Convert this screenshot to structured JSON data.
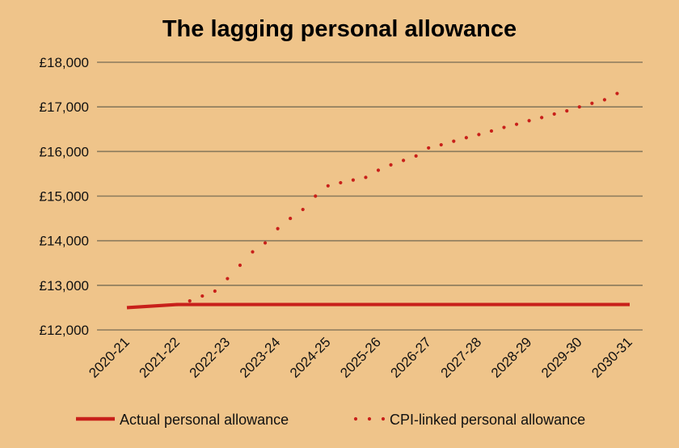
{
  "chart_data": {
    "type": "line",
    "title": "The lagging personal allowance",
    "xlabel": "",
    "ylabel": "",
    "categories": [
      "2020-21",
      "2021-22",
      "2022-23",
      "2023-24",
      "2024-25",
      "2025-26",
      "2026-27",
      "2027-28",
      "2028-29",
      "2029-30",
      "2030-31"
    ],
    "y_ticks": [
      "£12,000",
      "£13,000",
      "£14,000",
      "£15,000",
      "£16,000",
      "£17,000",
      "£18,000"
    ],
    "y_tick_values": [
      12000,
      13000,
      14000,
      15000,
      16000,
      17000,
      18000
    ],
    "ylim": [
      12000,
      18000
    ],
    "grid": true,
    "legend_position": "bottom",
    "series": [
      {
        "name": "Actual personal allowance",
        "style": "solid",
        "color": "#C8201A",
        "values": [
          12500,
          12570,
          12570,
          12570,
          12570,
          12570,
          12570,
          12570,
          12570,
          12570,
          12570
        ]
      },
      {
        "name": "CPI-linked personal allowance",
        "style": "dotted",
        "color": "#C8201A",
        "x": [
          1,
          1.25,
          1.5,
          1.75,
          2,
          2.25,
          2.5,
          2.75,
          3,
          3.25,
          3.5,
          3.75,
          4,
          4.25,
          4.5,
          4.75,
          5,
          5.25,
          5.5,
          5.75,
          6,
          6.25,
          6.5,
          6.75,
          7,
          7.25,
          7.5,
          7.75,
          8,
          8.25,
          8.5,
          8.75,
          9,
          9.25,
          9.5,
          9.75
        ],
        "values": [
          12570,
          12650,
          12760,
          12870,
          13150,
          13450,
          13750,
          13950,
          14270,
          14500,
          14700,
          15000,
          15230,
          15300,
          15360,
          15420,
          15580,
          15700,
          15800,
          15900,
          16080,
          16150,
          16230,
          16310,
          16380,
          16460,
          16540,
          16610,
          16690,
          16760,
          16840,
          16910,
          17000,
          17080,
          17160,
          17300
        ]
      }
    ]
  }
}
